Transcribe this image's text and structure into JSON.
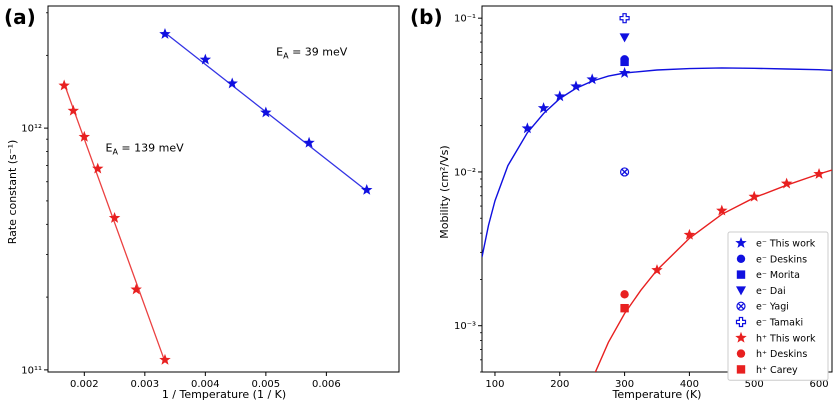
{
  "chart_data": [
    {
      "panel_label": "(a)",
      "type": "line",
      "xlabel": "1 / Temperature (1 / K)",
      "ylabel": "Rate constant (s⁻¹)",
      "xlim": [
        0.0014,
        0.0072
      ],
      "ylim": [
        98000000000,
        3200000000000
      ],
      "yscale": "log",
      "x_ticks": [
        {
          "v": 0.002,
          "label": "0.002"
        },
        {
          "v": 0.003,
          "label": "0.003"
        },
        {
          "v": 0.004,
          "label": "0.004"
        },
        {
          "v": 0.005,
          "label": "0.005"
        },
        {
          "v": 0.006,
          "label": "0.006"
        }
      ],
      "y_ticks": [
        {
          "v": 100000000000,
          "label": "10¹¹"
        },
        {
          "v": 1000000000000,
          "label": "10¹²"
        }
      ],
      "series": [
        {
          "color": "#e82020",
          "x": [
            0.001667,
            0.001818,
            0.002,
            0.002222,
            0.0025,
            0.002857,
            0.003333
          ],
          "y": [
            1500000000000,
            1180000000000,
            920000000000,
            680000000000,
            425000000000,
            215000000000,
            110000000000
          ],
          "fit": [
            [
              0.001667,
              1530000000000
            ],
            [
              0.003333,
              108000000000
            ]
          ]
        },
        {
          "color": "#1010e0",
          "x": [
            0.003333,
            0.004,
            0.004444,
            0.005,
            0.005714,
            0.006667
          ],
          "y": [
            2450000000000,
            1920000000000,
            1530000000000,
            1160000000000,
            870000000000,
            555000000000
          ],
          "fit": [
            [
              0.003333,
              2480000000000
            ],
            [
              0.006667,
              550000000000
            ]
          ]
        }
      ],
      "annotations": [
        {
          "text": "E",
          "sub": "A",
          "rest": " = 139 meV",
          "x": 0.00235,
          "y": 800000000000
        },
        {
          "text": "E",
          "sub": "A",
          "rest": " = 39 meV",
          "x": 0.00517,
          "y": 2000000000000
        }
      ]
    },
    {
      "panel_label": "(b)",
      "type": "scatter",
      "xlabel": "Temperature (K)",
      "ylabel": "Mobility (cm²/Vs)",
      "xlim": [
        80,
        620
      ],
      "ylim": [
        0.0005,
        0.12
      ],
      "yscale": "log",
      "x_ticks": [
        {
          "v": 100,
          "label": "100"
        },
        {
          "v": 200,
          "label": "200"
        },
        {
          "v": 300,
          "label": "300"
        },
        {
          "v": 400,
          "label": "400"
        },
        {
          "v": 500,
          "label": "500"
        },
        {
          "v": 600,
          "label": "600"
        }
      ],
      "y_ticks": [
        {
          "v": 0.001,
          "label": "10⁻³"
        },
        {
          "v": 0.01,
          "label": "10⁻²"
        },
        {
          "v": 0.1,
          "label": "10⁻¹"
        }
      ],
      "curves": [
        {
          "color": "#1010e0",
          "points": [
            [
              80,
              0.0028
            ],
            [
              90,
              0.0045
            ],
            [
              100,
              0.0065
            ],
            [
              120,
              0.011
            ],
            [
              150,
              0.018
            ],
            [
              175,
              0.024
            ],
            [
              200,
              0.03
            ],
            [
              225,
              0.035
            ],
            [
              250,
              0.039
            ],
            [
              275,
              0.042
            ],
            [
              300,
              0.044
            ],
            [
              350,
              0.046
            ],
            [
              400,
              0.047
            ],
            [
              450,
              0.0475
            ],
            [
              500,
              0.0472
            ],
            [
              550,
              0.0467
            ],
            [
              600,
              0.0462
            ],
            [
              620,
              0.0458
            ]
          ]
        },
        {
          "color": "#e82020",
          "points": [
            [
              255,
              0.0005
            ],
            [
              275,
              0.00078
            ],
            [
              300,
              0.0012
            ],
            [
              325,
              0.0017
            ],
            [
              350,
              0.0023
            ],
            [
              400,
              0.0037
            ],
            [
              450,
              0.0053
            ],
            [
              500,
              0.0068
            ],
            [
              550,
              0.0082
            ],
            [
              600,
              0.0097
            ],
            [
              620,
              0.0103
            ]
          ]
        }
      ],
      "series": [
        {
          "name": "e⁻ This work",
          "color": "#1010e0",
          "marker": "star",
          "filled": true,
          "x": [
            150,
            175,
            200,
            225,
            250,
            300
          ],
          "y": [
            0.0192,
            0.026,
            0.031,
            0.036,
            0.04,
            0.044
          ]
        },
        {
          "name": "e⁻ Deskins",
          "color": "#1010e0",
          "marker": "circle",
          "filled": true,
          "x": [
            300
          ],
          "y": [
            0.054
          ]
        },
        {
          "name": "e⁻ Morita",
          "color": "#1010e0",
          "marker": "square",
          "filled": true,
          "x": [
            300
          ],
          "y": [
            0.052
          ]
        },
        {
          "name": "e⁻ Dai",
          "color": "#1010e0",
          "marker": "tri-down",
          "filled": true,
          "x": [
            300
          ],
          "y": [
            0.075
          ]
        },
        {
          "name": "e⁻ Yagi",
          "color": "#1010e0",
          "marker": "x-circle",
          "filled": false,
          "x": [
            300
          ],
          "y": [
            0.01
          ]
        },
        {
          "name": "e⁻ Tamaki",
          "color": "#1010e0",
          "marker": "plus",
          "filled": false,
          "x": [
            300
          ],
          "y": [
            0.1
          ]
        },
        {
          "name": "h⁺ This work",
          "color": "#e82020",
          "marker": "star",
          "filled": true,
          "x": [
            350,
            400,
            450,
            500,
            550,
            600
          ],
          "y": [
            0.0023,
            0.0039,
            0.0056,
            0.0069,
            0.0084,
            0.0097
          ]
        },
        {
          "name": "h⁺ Deskins",
          "color": "#e82020",
          "marker": "circle",
          "filled": true,
          "x": [
            300
          ],
          "y": [
            0.0016
          ]
        },
        {
          "name": "h⁺ Carey",
          "color": "#e82020",
          "marker": "square",
          "filled": true,
          "x": [
            300
          ],
          "y": [
            0.0013
          ]
        }
      ],
      "legend_position": "bottom-right"
    }
  ]
}
